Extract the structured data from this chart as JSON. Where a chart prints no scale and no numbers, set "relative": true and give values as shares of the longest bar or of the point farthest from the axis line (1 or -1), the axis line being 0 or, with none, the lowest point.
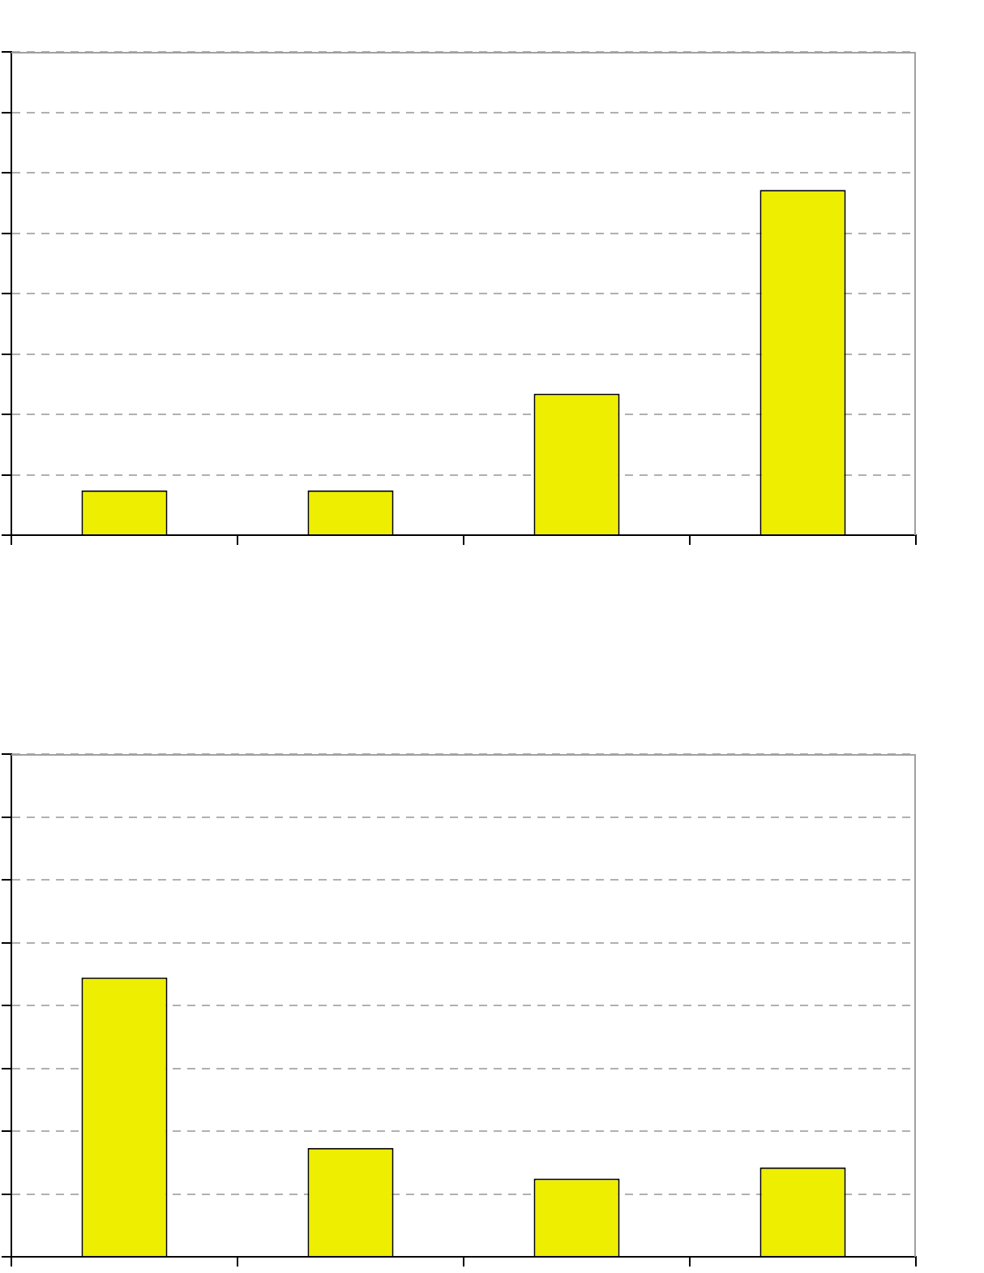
{
  "chart_data": [
    {
      "type": "bar",
      "categories": [
        null,
        null,
        null,
        null
      ],
      "values": [
        0.13,
        0.13,
        0.41,
        1
      ],
      "color": "#eeee00",
      "relative": true,
      "grid": "y",
      "tick_labels": false
    },
    {
      "type": "bar",
      "categories": [
        null,
        null,
        null,
        null
      ],
      "values": [
        1,
        0.39,
        0.28,
        0.32
      ],
      "color": "#eeee00",
      "relative": true,
      "grid": "y",
      "tick_labels": false
    }
  ]
}
